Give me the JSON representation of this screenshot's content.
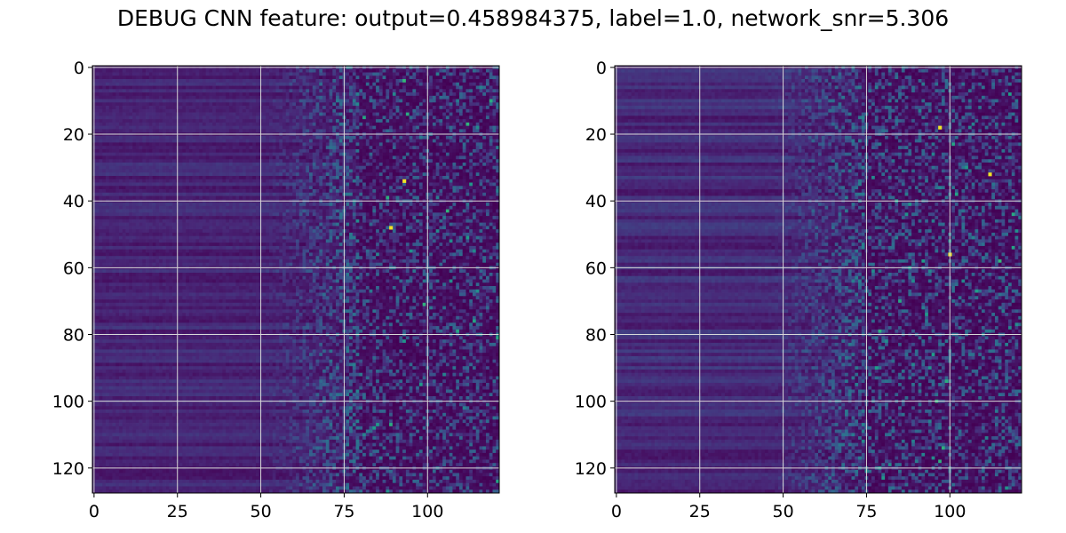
{
  "title": "DEBUG CNN feature: output=0.458984375, label=1.0, network_snr=5.306",
  "colors": {
    "colormap": "viridis",
    "grid": "#d9d9d9",
    "axis": "#000000",
    "background": "#ffffff"
  },
  "chart_data": [
    {
      "type": "heatmap",
      "title": "",
      "xlabel": "",
      "ylabel": "",
      "shape": [
        128,
        122
      ],
      "xlim": [
        -0.5,
        121.5
      ],
      "ylim": [
        127.5,
        -0.5
      ],
      "y_inverted": true,
      "grid": true,
      "colormap": "viridis",
      "xticks": [
        0,
        25,
        50,
        75,
        100
      ],
      "yticks": [
        0,
        20,
        40,
        60,
        80,
        100,
        120
      ],
      "xtick_labels": [
        "0",
        "25",
        "50",
        "75",
        "100"
      ],
      "ytick_labels": [
        "0",
        "20",
        "40",
        "60",
        "80",
        "100",
        "120"
      ],
      "pattern": {
        "low_band_columns": [
          0,
          50
        ],
        "low_band_level": 0.12,
        "transition_columns": [
          50,
          80
        ],
        "noise_columns": [
          80,
          121
        ],
        "noise_level": 0.35,
        "bright_spots": [
          [
            93,
            34
          ],
          [
            89,
            48
          ]
        ]
      },
      "seed": 11
    },
    {
      "type": "heatmap",
      "title": "",
      "xlabel": "",
      "ylabel": "",
      "shape": [
        128,
        122
      ],
      "xlim": [
        -0.5,
        121.5
      ],
      "ylim": [
        127.5,
        -0.5
      ],
      "y_inverted": true,
      "grid": true,
      "colormap": "viridis",
      "xticks": [
        0,
        25,
        50,
        75,
        100
      ],
      "yticks": [
        0,
        20,
        40,
        60,
        80,
        100,
        120
      ],
      "xtick_labels": [
        "0",
        "25",
        "50",
        "75",
        "100"
      ],
      "ytick_labels": [
        "0",
        "20",
        "40",
        "60",
        "80",
        "100",
        "120"
      ],
      "pattern": {
        "low_band_columns": [
          0,
          45
        ],
        "low_band_level": 0.14,
        "transition_columns": [
          45,
          75
        ],
        "noise_columns": [
          75,
          121
        ],
        "noise_level": 0.38,
        "bright_spots": [
          [
            100,
            56
          ],
          [
            97,
            18
          ],
          [
            112,
            32
          ]
        ]
      },
      "seed": 29
    }
  ]
}
